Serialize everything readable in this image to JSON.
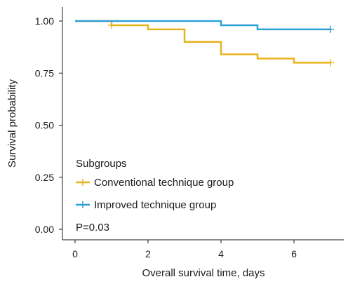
{
  "chart_data": {
    "type": "line",
    "subtype": "kaplan-meier step",
    "xlabel": "Overall survival time, days",
    "ylabel": "Survival probability",
    "xlim": [
      -0.5,
      7.5
    ],
    "ylim": [
      0.0,
      1.05
    ],
    "x_ticks": [
      "0",
      "2",
      "4",
      "6"
    ],
    "y_ticks": [
      "0.00",
      "0.25",
      "0.50",
      "0.75",
      "1.00"
    ],
    "grid": false,
    "legend_title": "Subgroups",
    "legend_position": "bottom-left",
    "annotation": "P=0.03",
    "series": [
      {
        "name": "Conventional technique group",
        "color": "#E8B21C",
        "steps": [
          [
            0,
            1.0
          ],
          [
            1,
            0.98
          ],
          [
            2,
            0.96
          ],
          [
            3,
            0.9
          ],
          [
            4,
            0.84
          ],
          [
            5,
            0.82
          ],
          [
            6,
            0.8
          ],
          [
            7,
            0.8
          ]
        ],
        "censor": [
          [
            1,
            0.98
          ],
          [
            7,
            0.8
          ]
        ]
      },
      {
        "name": "Improved technique group",
        "color": "#2F9FD8",
        "steps": [
          [
            0,
            1.0
          ],
          [
            4,
            0.98
          ],
          [
            5,
            0.96
          ],
          [
            7,
            0.96
          ]
        ],
        "censor": [
          [
            7,
            0.96
          ]
        ]
      }
    ]
  }
}
